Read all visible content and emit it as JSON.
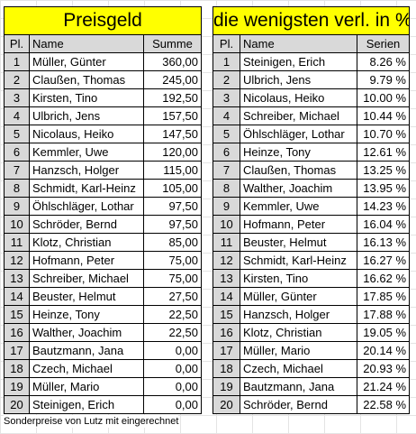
{
  "left_table": {
    "title": "Preisgeld",
    "headers": [
      "Pl.",
      "Name",
      "Summe"
    ],
    "rows": [
      [
        "1",
        "Müller, Günter",
        "360,00"
      ],
      [
        "2",
        "Claußen, Thomas",
        "245,00"
      ],
      [
        "3",
        "Kirsten, Tino",
        "192,50"
      ],
      [
        "4",
        "Ulbrich, Jens",
        "157,50"
      ],
      [
        "5",
        "Nicolaus, Heiko",
        "147,50"
      ],
      [
        "6",
        "Kemmler, Uwe",
        "120,00"
      ],
      [
        "7",
        "Hanzsch, Holger",
        "115,00"
      ],
      [
        "8",
        "Schmidt, Karl-Heinz",
        "105,00"
      ],
      [
        "9",
        "Öhlschläger, Lothar",
        "97,50"
      ],
      [
        "10",
        "Schröder, Bernd",
        "97,50"
      ],
      [
        "11",
        "Klotz, Christian",
        "85,00"
      ],
      [
        "12",
        "Hofmann, Peter",
        "75,00"
      ],
      [
        "13",
        "Schreiber, Michael",
        "75,00"
      ],
      [
        "14",
        "Beuster, Helmut",
        "27,50"
      ],
      [
        "15",
        "Heinze, Tony",
        "22,50"
      ],
      [
        "16",
        "Walther, Joachim",
        "22,50"
      ],
      [
        "17",
        "Bautzmann, Jana",
        "0,00"
      ],
      [
        "18",
        "Czech, Michael",
        "0,00"
      ],
      [
        "19",
        "Müller, Mario",
        "0,00"
      ],
      [
        "20",
        "Steinigen, Erich",
        "0,00"
      ]
    ]
  },
  "right_table": {
    "title": "die wenigsten verl. in %",
    "headers": [
      "Pl.",
      "Name",
      "Serien"
    ],
    "rows": [
      [
        "1",
        "Steinigen, Erich",
        "8.26 %"
      ],
      [
        "2",
        "Ulbrich, Jens",
        "9.79 %"
      ],
      [
        "3",
        "Nicolaus, Heiko",
        "10.00 %"
      ],
      [
        "4",
        "Schreiber, Michael",
        "10.44 %"
      ],
      [
        "5",
        "Öhlschläger, Lothar",
        "10.70 %"
      ],
      [
        "6",
        "Heinze, Tony",
        "12.61 %"
      ],
      [
        "7",
        "Claußen, Thomas",
        "13.25 %"
      ],
      [
        "8",
        "Walther, Joachim",
        "13.95 %"
      ],
      [
        "9",
        "Kemmler, Uwe",
        "14.23 %"
      ],
      [
        "10",
        "Hofmann, Peter",
        "16.04 %"
      ],
      [
        "11",
        "Beuster, Helmut",
        "16.13 %"
      ],
      [
        "12",
        "Schmidt, Karl-Heinz",
        "16.27 %"
      ],
      [
        "13",
        "Kirsten, Tino",
        "16.62 %"
      ],
      [
        "14",
        "Müller, Günter",
        "17.85 %"
      ],
      [
        "15",
        "Hanzsch, Holger",
        "17.88 %"
      ],
      [
        "16",
        "Klotz, Christian",
        "19.05 %"
      ],
      [
        "17",
        "Müller, Mario",
        "20.14 %"
      ],
      [
        "18",
        "Czech, Michael",
        "20.93 %"
      ],
      [
        "19",
        "Bautzmann, Jana",
        "21.24 %"
      ],
      [
        "20",
        "Schröder, Bernd",
        "22.58 %"
      ]
    ]
  },
  "footnote": "Sonderpreise von Lutz mit eingerechnet",
  "colors": {
    "title_background": "#ffff00",
    "header_background": "#d9d9d9",
    "rank_background": "#d9d9d9"
  }
}
